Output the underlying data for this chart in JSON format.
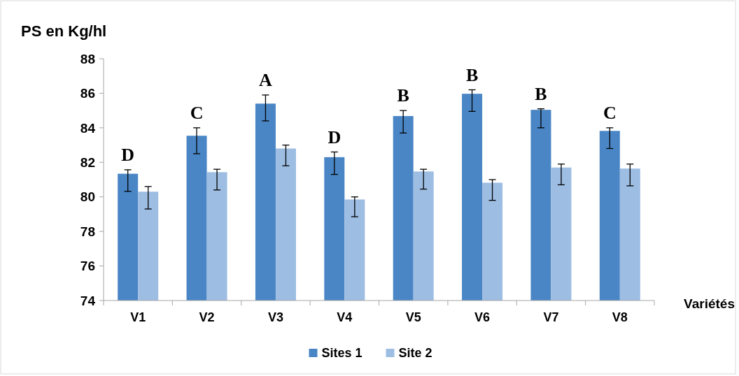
{
  "chart_data": {
    "type": "bar",
    "ylabel": "PS en Kg/hl",
    "xlabel": "Variétés",
    "categories": [
      "V1",
      "V2",
      "V3",
      "V4",
      "V5",
      "V6",
      "V7",
      "V8"
    ],
    "series": [
      {
        "name": "Sites 1",
        "color": "#4a86c5",
        "values": [
          81.34,
          83.54,
          85.4,
          82.3,
          84.68,
          85.97,
          85.04,
          83.82
        ],
        "errors": [
          [
            80.32,
            81.57
          ],
          [
            82.5,
            84.0
          ],
          [
            84.4,
            85.9
          ],
          [
            81.3,
            82.6
          ],
          [
            83.7,
            85.0
          ],
          [
            84.95,
            86.2
          ],
          [
            84.0,
            85.1
          ],
          [
            82.8,
            84.0
          ]
        ]
      },
      {
        "name": "Site 2",
        "color": "#9dbde3",
        "values": [
          80.3,
          81.43,
          82.8,
          79.85,
          81.47,
          80.82,
          81.7,
          81.64
        ],
        "errors": [
          [
            79.3,
            80.6
          ],
          [
            80.4,
            81.6
          ],
          [
            81.8,
            83.0
          ],
          [
            78.85,
            80.0
          ],
          [
            80.45,
            81.6
          ],
          [
            79.8,
            81.0
          ],
          [
            80.7,
            81.9
          ],
          [
            80.64,
            81.9
          ]
        ]
      }
    ],
    "ylim": [
      74,
      88
    ],
    "yticks": [
      74,
      76,
      78,
      80,
      82,
      84,
      86,
      88
    ],
    "grid": false,
    "legend": "bottom",
    "annotations": [
      {
        "text": "D",
        "x": "V1",
        "y": 81.34
      },
      {
        "text": "C",
        "x": "V2",
        "y": 83.54
      },
      {
        "text": "A",
        "x": "V3",
        "y": 85.4
      },
      {
        "text": "D",
        "x": "V4",
        "y": 82.3
      },
      {
        "text": "B",
        "x": "V5",
        "y": 84.68
      },
      {
        "text": "B",
        "x": "V6",
        "y": 85.97
      },
      {
        "text": "B",
        "x": "V7",
        "y": 85.04
      },
      {
        "text": "C",
        "x": "V8",
        "y": 83.82
      }
    ]
  }
}
